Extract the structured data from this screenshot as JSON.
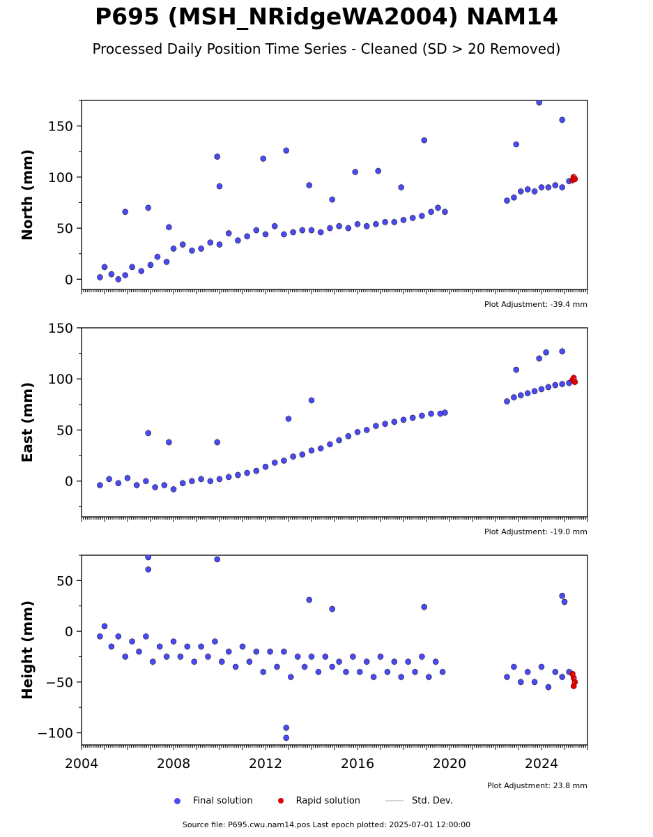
{
  "title": "P695 (MSH_NRidgeWA2004) NAM14",
  "subtitle": "Processed Daily Position Time Series - Cleaned (SD > 20 Removed)",
  "colors": {
    "final": "#4a4af0",
    "final_edge": "#1a1a40",
    "rapid": "#e00000",
    "stddev": "#c8c8c8"
  },
  "legend": {
    "final": "Final solution",
    "rapid": "Rapid solution",
    "stddev": "Std. Dev."
  },
  "footer": "Source file: P695.cwu.nam14.pos  Last epoch plotted: 2025-07-01 12:00:00",
  "chart_data": [
    {
      "type": "scatter",
      "ylabel": "North (mm)",
      "ylim": [
        -10,
        175
      ],
      "yticks": [
        0,
        50,
        100,
        150
      ],
      "xlim": [
        2004.0,
        2026.0
      ],
      "adjustment": "Plot Adjustment: -39.4 mm",
      "series": [
        {
          "name": "Final solution",
          "x": [
            2004.8,
            2005.0,
            2005.3,
            2005.6,
            2005.9,
            2006.2,
            2006.6,
            2007.0,
            2007.3,
            2007.7,
            2008.0,
            2008.4,
            2008.8,
            2009.2,
            2009.6,
            2010.0,
            2010.4,
            2010.8,
            2011.2,
            2011.6,
            2012.0,
            2012.4,
            2012.8,
            2013.2,
            2013.6,
            2014.0,
            2014.4,
            2014.8,
            2015.2,
            2015.6,
            2016.0,
            2016.4,
            2016.8,
            2017.2,
            2017.6,
            2018.0,
            2018.4,
            2018.8,
            2019.2,
            2019.5,
            2019.8,
            2022.5,
            2022.8,
            2023.1,
            2023.4,
            2023.7,
            2024.0,
            2024.3,
            2024.6,
            2024.9,
            2025.2,
            2025.4
          ],
          "y": [
            2,
            12,
            5,
            0,
            4,
            12,
            8,
            14,
            22,
            17,
            30,
            34,
            28,
            30,
            36,
            34,
            45,
            38,
            42,
            48,
            44,
            52,
            44,
            46,
            48,
            48,
            46,
            50,
            52,
            50,
            54,
            52,
            54,
            56,
            56,
            58,
            60,
            62,
            66,
            70,
            66,
            77,
            80,
            86,
            88,
            86,
            90,
            90,
            92,
            90,
            96,
            100
          ]
        },
        {
          "name": "Final solution (seasonal peaks)",
          "x": [
            2005.9,
            2006.9,
            2007.8,
            2009.9,
            2010.0,
            2011.9,
            2012.9,
            2013.9,
            2014.9,
            2015.9,
            2016.9,
            2017.9,
            2018.9,
            2022.9,
            2023.9,
            2024.9
          ],
          "y": [
            66,
            70,
            51,
            120,
            91,
            118,
            126,
            92,
            78,
            105,
            106,
            90,
            136,
            132,
            173,
            156
          ]
        },
        {
          "name": "Rapid solution",
          "x": [
            2025.35,
            2025.4,
            2025.45
          ],
          "y": [
            97,
            100,
            98
          ]
        }
      ]
    },
    {
      "type": "scatter",
      "ylabel": "East (mm)",
      "ylim": [
        -35,
        150
      ],
      "yticks": [
        0,
        50,
        100,
        150
      ],
      "xlim": [
        2004.0,
        2026.0
      ],
      "adjustment": "Plot Adjustment: -19.0 mm",
      "series": [
        {
          "name": "Final solution",
          "x": [
            2004.8,
            2005.2,
            2005.6,
            2006.0,
            2006.4,
            2006.8,
            2007.2,
            2007.6,
            2008.0,
            2008.4,
            2008.8,
            2009.2,
            2009.6,
            2010.0,
            2010.4,
            2010.8,
            2011.2,
            2011.6,
            2012.0,
            2012.4,
            2012.8,
            2013.2,
            2013.6,
            2014.0,
            2014.4,
            2014.8,
            2015.2,
            2015.6,
            2016.0,
            2016.4,
            2016.8,
            2017.2,
            2017.6,
            2018.0,
            2018.4,
            2018.8,
            2019.2,
            2019.6,
            2019.8,
            2022.5,
            2022.8,
            2023.1,
            2023.4,
            2023.7,
            2024.0,
            2024.3,
            2024.6,
            2024.9,
            2025.2,
            2025.4
          ],
          "y": [
            -4,
            2,
            -2,
            3,
            -4,
            0,
            -6,
            -4,
            -8,
            -2,
            0,
            2,
            0,
            2,
            4,
            6,
            8,
            10,
            14,
            18,
            20,
            24,
            26,
            30,
            32,
            36,
            40,
            44,
            48,
            50,
            54,
            56,
            58,
            60,
            62,
            64,
            66,
            66,
            67,
            78,
            82,
            84,
            86,
            88,
            90,
            92,
            94,
            95,
            96,
            98
          ]
        },
        {
          "name": "Final solution (outliers)",
          "x": [
            2006.9,
            2007.8,
            2009.9,
            2013.0,
            2014.0,
            2022.9,
            2023.9,
            2024.2,
            2024.9
          ],
          "y": [
            47,
            38,
            38,
            61,
            79,
            109,
            120,
            126,
            127
          ]
        },
        {
          "name": "Rapid solution",
          "x": [
            2025.35,
            2025.4,
            2025.45
          ],
          "y": [
            99,
            101,
            97
          ]
        }
      ]
    },
    {
      "type": "scatter",
      "ylabel": "Height (mm)",
      "ylim": [
        -112,
        75
      ],
      "yticks": [
        -100,
        -50,
        0,
        50
      ],
      "xlim": [
        2004.0,
        2026.0
      ],
      "xticks": [
        2004,
        2008,
        2012,
        2016,
        2020,
        2024
      ],
      "adjustment": "Plot Adjustment: 23.8 mm",
      "series": [
        {
          "name": "Final solution",
          "x": [
            2004.8,
            2005.0,
            2005.3,
            2005.6,
            2005.9,
            2006.2,
            2006.5,
            2006.8,
            2007.1,
            2007.4,
            2007.7,
            2008.0,
            2008.3,
            2008.6,
            2008.9,
            2009.2,
            2009.5,
            2009.8,
            2010.1,
            2010.4,
            2010.7,
            2011.0,
            2011.3,
            2011.6,
            2011.9,
            2012.2,
            2012.5,
            2012.8,
            2013.1,
            2013.4,
            2013.7,
            2014.0,
            2014.3,
            2014.6,
            2014.9,
            2015.2,
            2015.5,
            2015.8,
            2016.1,
            2016.4,
            2016.7,
            2017.0,
            2017.3,
            2017.6,
            2017.9,
            2018.2,
            2018.5,
            2018.8,
            2019.1,
            2019.4,
            2019.7,
            2022.5,
            2022.8,
            2023.1,
            2023.4,
            2023.7,
            2024.0,
            2024.3,
            2024.6,
            2024.9,
            2025.2
          ],
          "y": [
            -5,
            5,
            -15,
            -5,
            -25,
            -10,
            -20,
            -5,
            -30,
            -15,
            -25,
            -10,
            -25,
            -15,
            -30,
            -15,
            -25,
            -10,
            -30,
            -20,
            -35,
            -15,
            -30,
            -20,
            -40,
            -20,
            -35,
            -20,
            -45,
            -25,
            -35,
            -25,
            -40,
            -25,
            -35,
            -30,
            -40,
            -25,
            -40,
            -30,
            -45,
            -25,
            -40,
            -30,
            -45,
            -30,
            -40,
            -25,
            -45,
            -30,
            -40,
            -45,
            -35,
            -50,
            -40,
            -50,
            -35,
            -55,
            -40,
            -45,
            -40
          ]
        },
        {
          "name": "Final solution (outliers)",
          "x": [
            2006.9,
            2006.9,
            2009.9,
            2012.9,
            2012.9,
            2013.9,
            2014.9,
            2018.9,
            2024.9,
            2025.0
          ],
          "y": [
            73,
            61,
            71,
            -95,
            -105,
            31,
            22,
            24,
            35,
            29
          ]
        },
        {
          "name": "Rapid solution",
          "x": [
            2025.35,
            2025.4,
            2025.45,
            2025.4
          ],
          "y": [
            -42,
            -46,
            -50,
            -54
          ]
        }
      ]
    }
  ]
}
